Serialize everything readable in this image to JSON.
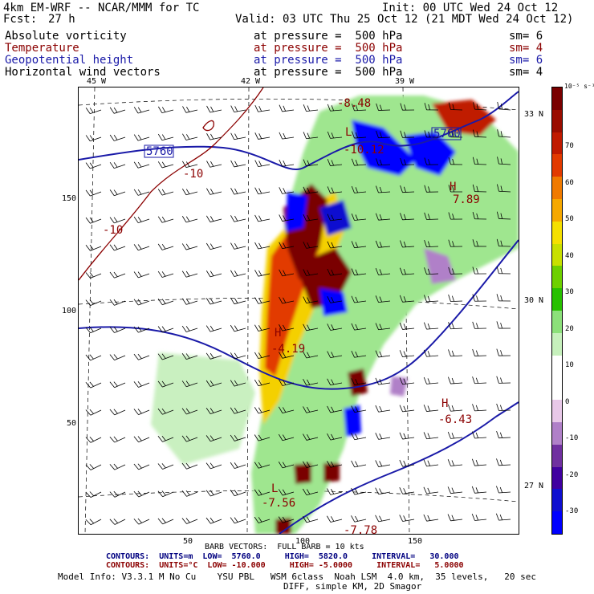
{
  "header": {
    "line1_left": "4km EM-WRF -- NCAR/MMM for TC",
    "line1_right": "Init: 00 UTC Wed 24 Oct 12",
    "line2_left": "Fcst:",
    "line2_fcst": "27 h",
    "line2_right": "Valid: 03 UTC Thu 25 Oct 12 (21 MDT Wed 24 Oct 12)"
  },
  "fields": [
    {
      "name": "Absolute vorticity",
      "level": "at pressure =  500 hPa",
      "sm": "sm= 6",
      "color": "#000000"
    },
    {
      "name": "Temperature",
      "level": "at pressure =  500 hPa",
      "sm": "sm= 4",
      "color": "#8b0000"
    },
    {
      "name": "Geopotential height",
      "level": "at pressure =  500 hPa",
      "sm": "sm= 6",
      "color": "#1a1aa8"
    },
    {
      "name": "Horizontal wind vectors",
      "level": "at pressure =  500 hPa",
      "sm": "sm= 4",
      "color": "#000000"
    }
  ],
  "map": {
    "top_lon_labels": [
      "45 W",
      "42 W",
      "39 W"
    ],
    "right_lat_labels": [
      "33 N",
      "30 N",
      "27 N"
    ],
    "left_y_ticks": [
      "150",
      "100",
      "50"
    ],
    "bottom_x_ticks": [
      "50",
      "100",
      "150"
    ],
    "annotations": [
      {
        "text": "-8.48",
        "color": "#8b0000"
      },
      {
        "text": "L",
        "color": "#8b0000"
      },
      {
        "text": "-10.12",
        "color": "#8b0000"
      },
      {
        "text": "5760",
        "color": "#1a1aa8"
      },
      {
        "text": "-10",
        "color": "#8b0000"
      },
      {
        "text": "-10",
        "color": "#8b0000"
      },
      {
        "text": "5760",
        "color": "#1a1aa8"
      },
      {
        "text": "7.89",
        "color": "#8b0000"
      },
      {
        "text": "H",
        "color": "#8b0000"
      },
      {
        "text": "H",
        "color": "#8b0000"
      },
      {
        "text": "-4.19",
        "color": "#8b0000"
      },
      {
        "text": "H",
        "color": "#8b0000"
      },
      {
        "text": "-6.43",
        "color": "#8b0000"
      },
      {
        "text": "L",
        "color": "#8b0000"
      },
      {
        "text": "-7.56",
        "color": "#8b0000"
      },
      {
        "text": "-7.78",
        "color": "#8b0000"
      }
    ]
  },
  "colorbar": {
    "unit_label": "10⁻⁵ s⁻¹",
    "labels": [
      "70",
      "60",
      "50",
      "40",
      "30",
      "20",
      "10",
      "0",
      "-10",
      "-20",
      "-30"
    ],
    "colors": [
      "#7a0000",
      "#9a0d00",
      "#c01a00",
      "#e23a00",
      "#f07a00",
      "#f6a800",
      "#f5e000",
      "#c8e000",
      "#6ed000",
      "#28c000",
      "#8ce07a",
      "#c6f0bc",
      "#ffffff",
      "#ffffff",
      "#e8c8e8",
      "#b080c8",
      "#7030a0",
      "#4000a0",
      "#1010d0",
      "#0000ff"
    ]
  },
  "footer": {
    "barb_line": "BARB VECTORS:  FULL BARB = 10 kts",
    "contour1": "CONTOURS:  UNITS=m  LOW=  5760.0     HIGH=  5820.0     INTERVAL=   30.000",
    "contour2": "CONTOURS:  UNITS=°C  LOW= -10.000     HIGH= -5.0000     INTERVAL=   5.0000",
    "model_info": "Model Info: V3.3.1 M No Cu    YSU PBL   WSM 6class  Noah LSM  4.0 km,  35 levels,   20 sec",
    "diff_line": "DIFF, simple KM, 2D Smagor"
  }
}
